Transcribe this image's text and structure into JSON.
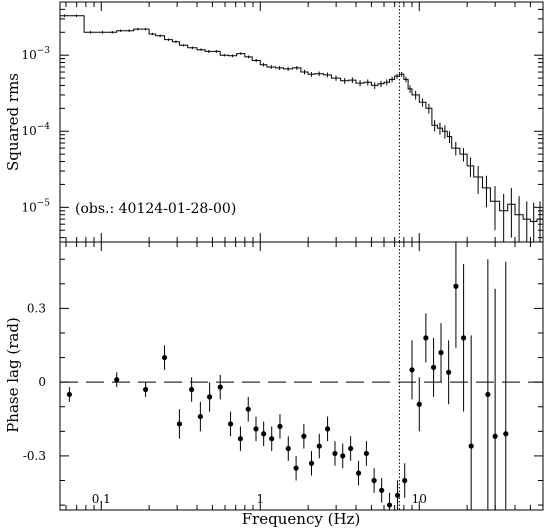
{
  "chart_data": [
    {
      "type": "line",
      "ylabel": "Squared rms",
      "x_scale": "log",
      "y_scale": "log",
      "xlim": [
        0.055,
        60
      ],
      "ylim": [
        3.5e-06,
        0.005
      ],
      "y_ticks": [
        {
          "value": 0.001,
          "label": "10^-3",
          "base": "10",
          "exp": "−3"
        },
        {
          "value": 0.0001,
          "label": "10^-4",
          "base": "10",
          "exp": "−4"
        },
        {
          "value": 1e-05,
          "label": "10^-5",
          "base": "10",
          "exp": "−5"
        }
      ],
      "annotation": "(obs.: 40124-01-28-00)",
      "vertical_line_x": 7.5,
      "grid": false,
      "series": [
        {
          "style": "step-with-errorbars",
          "x": [
            0.055,
            0.0625,
            0.078,
            0.094,
            0.11,
            0.125,
            0.14,
            0.16,
            0.18,
            0.2,
            0.22,
            0.25,
            0.28,
            0.31,
            0.35,
            0.4,
            0.45,
            0.5,
            0.56,
            0.63,
            0.71,
            0.8,
            0.89,
            1.0,
            1.1,
            1.25,
            1.4,
            1.6,
            1.8,
            2.0,
            2.2,
            2.5,
            2.8,
            3.2,
            3.6,
            4.0,
            4.5,
            5.0,
            5.5,
            6.0,
            6.5,
            7.0,
            7.5,
            8.0,
            8.5,
            9.0,
            10,
            11,
            12,
            13,
            14,
            15,
            16,
            18,
            20,
            22,
            25,
            28,
            32,
            36,
            40,
            45,
            50,
            55,
            60
          ],
          "y": [
            0.0033,
            0.0033,
            0.002,
            0.002,
            0.002,
            0.0021,
            0.0021,
            0.0022,
            0.0022,
            0.0019,
            0.0018,
            0.0016,
            0.0015,
            0.00135,
            0.00125,
            0.00118,
            0.00112,
            0.00112,
            0.001,
            0.00098,
            0.00105,
            0.00095,
            0.00085,
            0.00075,
            0.0007,
            0.00068,
            0.00066,
            0.00068,
            0.0006,
            0.00056,
            0.00057,
            0.00055,
            0.0005,
            0.00046,
            0.00047,
            0.00043,
            0.00044,
            0.0004,
            0.00042,
            0.00044,
            0.00048,
            0.00053,
            0.00056,
            0.00048,
            0.00036,
            0.0003,
            0.00024,
            0.0002,
            0.00012,
            0.00011,
            0.0001,
            8.5e-05,
            6e-05,
            5e-05,
            3.5e-05,
            2.5e-05,
            1.8e-05,
            1.2e-05,
            9e-06,
            1.1e-05,
            8e-06,
            7e-06,
            6.5e-06,
            7e-06,
            8e-06
          ],
          "err": [
            0.00012,
            0.00012,
            8e-05,
            8e-05,
            8e-05,
            8e-05,
            8e-05,
            8e-05,
            8e-05,
            7e-05,
            7e-05,
            6e-05,
            6e-05,
            5e-05,
            5e-05,
            5e-05,
            5e-05,
            5e-05,
            4e-05,
            4e-05,
            4e-05,
            4e-05,
            4e-05,
            4e-05,
            4e-05,
            4e-05,
            4e-05,
            4e-05,
            4e-05,
            4e-05,
            4e-05,
            4e-05,
            4e-05,
            4e-05,
            4e-05,
            4e-05,
            4e-05,
            4e-05,
            4e-05,
            4e-05,
            4e-05,
            4e-05,
            4e-05,
            4e-05,
            4e-05,
            4e-05,
            3e-05,
            3e-05,
            2e-05,
            2e-05,
            2e-05,
            1.5e-05,
            1.2e-05,
            1e-05,
            1e-05,
            1e-05,
            8e-06,
            7e-06,
            6e-06,
            7e-06,
            6e-06,
            5e-06,
            5e-06,
            5e-06,
            6e-06
          ]
        }
      ]
    },
    {
      "type": "scatter",
      "xlabel": "Frequency (Hz)",
      "ylabel": "Phase lag (rad)",
      "x_scale": "log",
      "xlim": [
        0.055,
        60
      ],
      "ylim": [
        -0.52,
        0.57
      ],
      "y_ticks": [
        {
          "value": 0.3,
          "label": "0.3"
        },
        {
          "value": 0,
          "label": "0"
        },
        {
          "value": -0.3,
          "label": "-0.3"
        }
      ],
      "x_ticks": [
        {
          "value": 0.1,
          "label": "0.1"
        },
        {
          "value": 1,
          "label": "1"
        },
        {
          "value": 10,
          "label": "10"
        }
      ],
      "reference_line_y": 0,
      "vertical_line_x": 7.5,
      "grid": false,
      "series": [
        {
          "style": "points-with-errorbars",
          "x": [
            0.063,
            0.125,
            0.19,
            0.25,
            0.31,
            0.37,
            0.42,
            0.48,
            0.56,
            0.65,
            0.75,
            0.84,
            0.94,
            1.05,
            1.18,
            1.33,
            1.5,
            1.68,
            1.88,
            2.1,
            2.35,
            2.65,
            2.95,
            3.3,
            3.7,
            4.15,
            4.65,
            5.2,
            5.8,
            6.5,
            7.3,
            8.1,
            9.0,
            10.0,
            11.0,
            12.3,
            13.7,
            15.3,
            17.0,
            19.0,
            21.2,
            27,
            30,
            35
          ],
          "y": [
            -0.05,
            0.01,
            -0.03,
            0.1,
            -0.17,
            -0.03,
            -0.14,
            -0.06,
            -0.02,
            -0.17,
            -0.23,
            -0.11,
            -0.19,
            -0.21,
            -0.23,
            -0.18,
            -0.27,
            -0.35,
            -0.22,
            -0.33,
            -0.26,
            -0.19,
            -0.29,
            -0.3,
            -0.27,
            -0.37,
            -0.29,
            -0.4,
            -0.44,
            -0.5,
            -0.46,
            -0.4,
            0.05,
            -0.09,
            0.18,
            0.06,
            0.12,
            0.04,
            0.39,
            0.18,
            -0.26,
            -0.05,
            -0.22,
            -0.21
          ],
          "err": [
            0.03,
            0.03,
            0.03,
            0.05,
            0.06,
            0.05,
            0.06,
            0.06,
            0.05,
            0.05,
            0.05,
            0.05,
            0.05,
            0.05,
            0.05,
            0.05,
            0.05,
            0.05,
            0.05,
            0.05,
            0.05,
            0.05,
            0.05,
            0.05,
            0.05,
            0.05,
            0.05,
            0.05,
            0.05,
            0.05,
            0.06,
            0.07,
            0.12,
            0.11,
            0.1,
            0.12,
            0.12,
            0.13,
            0.25,
            0.3,
            0.45,
            0.55,
            0.6,
            0.7
          ]
        }
      ]
    }
  ]
}
